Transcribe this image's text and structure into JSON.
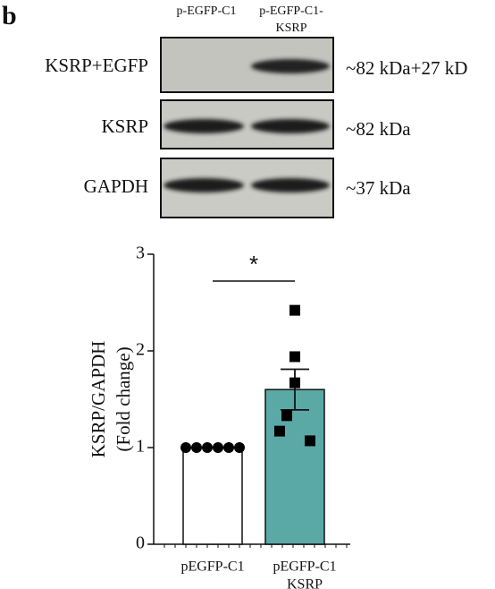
{
  "panel_label": "b",
  "blot": {
    "column_headers": [
      [
        "p-EGFP-C1"
      ],
      [
        "p-EGFP-C1-",
        "KSRP"
      ]
    ],
    "rows": [
      {
        "label": "KSRP+EGFP",
        "size": "~82 kDa+27 kD"
      },
      {
        "label": "KSRP",
        "size": "~82 kDa"
      },
      {
        "label": "GAPDH",
        "size": "~37 kDa"
      }
    ]
  },
  "chart_data": {
    "type": "bar",
    "y_label": [
      "KSRP/GAPDH",
      "(Fold change)"
    ],
    "categories": [
      [
        "pEGFP-C1"
      ],
      [
        "pEGFP-C1",
        "KSRP"
      ]
    ],
    "values": [
      1.0,
      1.6
    ],
    "errors": [
      0,
      0.21
    ],
    "colors": [
      "#ffffff",
      "#5aa9a7"
    ],
    "points": [
      [
        1,
        1,
        1,
        1,
        1,
        1
      ],
      [
        2.42,
        1.94,
        1.67,
        1.33,
        1.17,
        1.07
      ]
    ],
    "markers": [
      "circle",
      "square"
    ],
    "significance": "*",
    "ylim": [
      0,
      3
    ],
    "yticks": [
      0,
      1,
      2,
      3
    ]
  }
}
